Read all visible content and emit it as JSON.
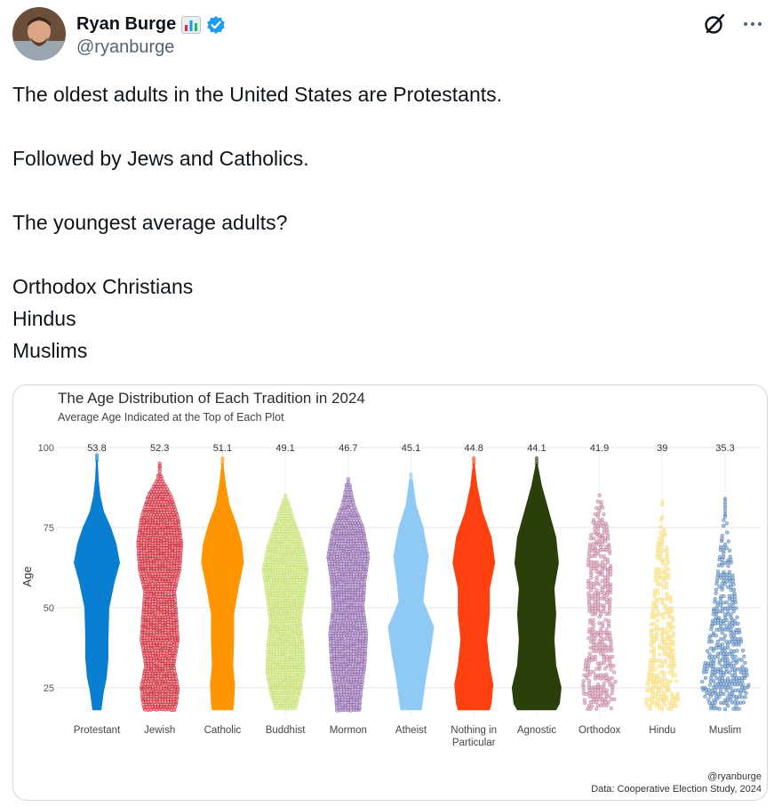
{
  "author": {
    "name": "Ryan Burge",
    "handle": "@ryanburge"
  },
  "tweet": {
    "lines": [
      "The oldest adults in the United States are Protestants.",
      "",
      "Followed by Jews and Catholics.",
      "",
      "The youngest average adults?",
      "",
      "Orthodox Christians",
      "Hindus",
      "Muslims"
    ]
  },
  "chart_data": {
    "type": "beeswarm",
    "title": "The Age Distribution of Each Tradition in 2024",
    "subtitle": "Average Age Indicated at the Top of Each Plot",
    "ylabel": "Age",
    "ylim": [
      15,
      100
    ],
    "yticks": [
      25,
      50,
      75,
      100
    ],
    "categories": [
      "Protestant",
      "Jewish",
      "Catholic",
      "Buddhist",
      "Mormon",
      "Atheist",
      "Nothing in Particular",
      "Agnostic",
      "Orthodox",
      "Hindu",
      "Muslim"
    ],
    "averages": [
      "53.8",
      "52.3",
      "51.1",
      "49.1",
      "46.7",
      "45.1",
      "44.8",
      "44.1",
      "41.9",
      "39",
      "35.3"
    ],
    "colors": [
      "#0a7fd1",
      "#cf2336",
      "#ff9500",
      "#c5e06a",
      "#8e67ad",
      "#8fcaf5",
      "#ff4010",
      "#2b3f0b",
      "#c27c9a",
      "#f7dc6f",
      "#4a7db5"
    ],
    "grid": true,
    "credit": "@ryanburge",
    "source": "Data: Cooperative Election Study, 2024"
  }
}
